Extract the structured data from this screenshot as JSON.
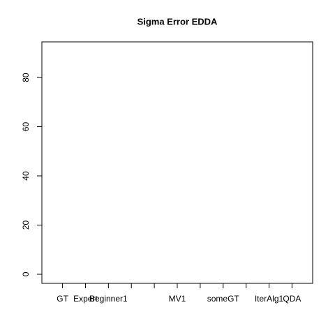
{
  "chart_data": {
    "type": "box",
    "title": "Sigma Error EDDA",
    "categories": [
      "GT",
      "Expert",
      "Beginner1",
      null,
      null,
      "MV1",
      null,
      "someGT",
      null,
      "IterAlg1",
      "QDA"
    ],
    "xlim": [
      0.1,
      11.9
    ],
    "ylim": [
      -3.7,
      94.5
    ],
    "yticks": [
      0,
      20,
      40,
      60,
      80
    ]
  }
}
